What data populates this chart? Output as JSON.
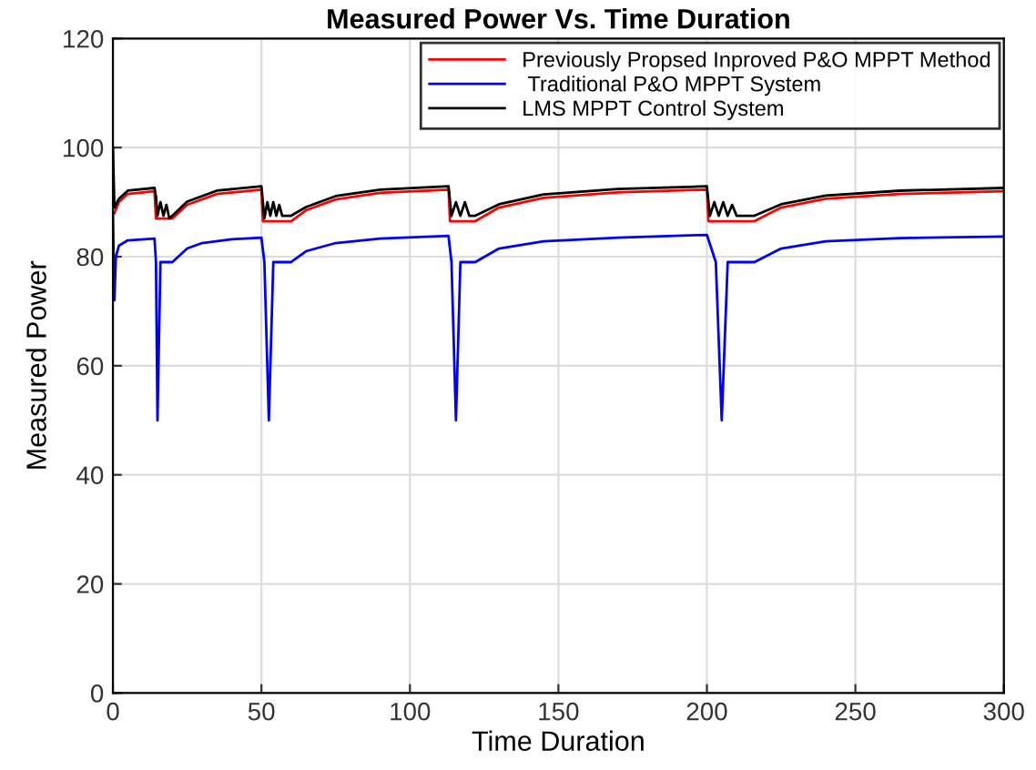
{
  "chart_data": {
    "type": "line",
    "title": "Measured Power Vs. Time Duration",
    "xlabel": "Time Duration",
    "ylabel": "Measured Power",
    "xlim": [
      0,
      300
    ],
    "xticks": [
      0,
      50,
      100,
      150,
      200,
      250,
      300
    ],
    "ylim": [
      0,
      120
    ],
    "yticks": [
      0,
      20,
      40,
      60,
      80,
      100,
      120
    ],
    "grid": true,
    "legend": "top right",
    "series": [
      {
        "name": "Previously Propsed Inproved P&O MPPT Method",
        "color": "#ff0000",
        "x": [
          0.5,
          2,
          5,
          14,
          14.5,
          20,
          25,
          35,
          50,
          50.5,
          60,
          65,
          75,
          90,
          113,
          113.5,
          122,
          130,
          145,
          170,
          200,
          200.5,
          216,
          225,
          240,
          265,
          300
        ],
        "values": [
          88,
          90,
          91.5,
          92,
          87,
          87,
          89.5,
          91.5,
          92.3,
          86.5,
          86.5,
          88.5,
          90.5,
          91.7,
          92.3,
          86.5,
          86.5,
          89,
          90.8,
          91.8,
          92.3,
          86.5,
          86.5,
          89,
          90.6,
          91.5,
          92
        ]
      },
      {
        "name": " Traditional P&O MPPT System",
        "color": "#0000ff",
        "x": [
          0,
          0.5,
          1,
          2,
          5,
          14,
          14.5,
          15,
          16,
          20,
          25,
          30,
          40,
          50,
          51,
          52.5,
          54,
          60,
          65,
          75,
          90,
          113,
          114,
          115.5,
          117,
          122,
          130,
          145,
          170,
          200,
          203,
          205,
          207,
          216,
          225,
          240,
          265,
          300
        ],
        "values": [
          88,
          72,
          80,
          82,
          83,
          83.3,
          79,
          50,
          79,
          79,
          81.5,
          82.5,
          83.2,
          83.5,
          79,
          50,
          79,
          79,
          81,
          82.5,
          83.3,
          83.8,
          79,
          50,
          79,
          79,
          81.5,
          82.8,
          83.5,
          84,
          79,
          50,
          79,
          79,
          81.5,
          82.8,
          83.4,
          83.7
        ]
      },
      {
        "name": "LMS MPPT Control System",
        "color": "#000000",
        "x": [
          0,
          0.5,
          2,
          5,
          14,
          14.5,
          15,
          16,
          17,
          18,
          19,
          20,
          25,
          35,
          50,
          51,
          52,
          53,
          54,
          55,
          56,
          57,
          60,
          65,
          75,
          90,
          113,
          114,
          115.5,
          117,
          118.5,
          120,
          122,
          130,
          145,
          170,
          200,
          201,
          202.5,
          204,
          205.5,
          207,
          208.5,
          210,
          216,
          225,
          240,
          265,
          300
        ],
        "values": [
          100,
          89,
          90.6,
          92.1,
          92.6,
          91,
          87.5,
          90,
          87.5,
          89.5,
          87,
          87.5,
          90.1,
          92.1,
          92.9,
          87,
          90,
          87.5,
          90,
          87.5,
          89.5,
          87.5,
          87.5,
          89.1,
          91.1,
          92.3,
          92.9,
          87.5,
          90,
          87.5,
          90,
          87.5,
          87.5,
          89.6,
          91.4,
          92.4,
          92.9,
          87.5,
          90,
          87.5,
          90,
          87.5,
          89.5,
          87.5,
          87.5,
          89.6,
          91.2,
          92.1,
          92.6
        ]
      }
    ]
  }
}
